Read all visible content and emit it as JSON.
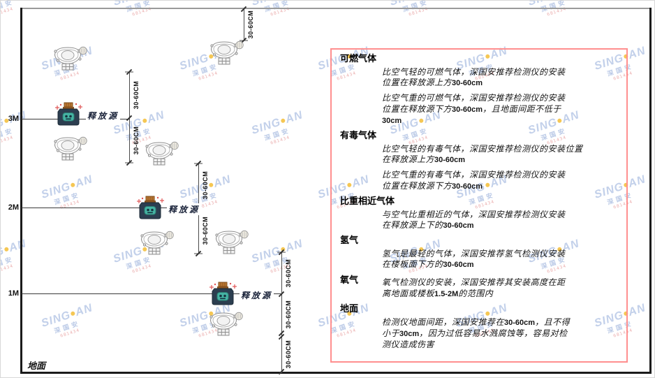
{
  "diagram": {
    "ground_label": "地面",
    "dim_label": "30-60CM",
    "release_source_label": "释放源",
    "height_markers": [
      {
        "label": "3M"
      },
      {
        "label": "2M"
      },
      {
        "label": "1M"
      }
    ]
  },
  "panel": {
    "sections": [
      {
        "title": "可燃气体",
        "paras": [
          [
            "比空气轻的可燃气体，深国安推荐检测仪的安装",
            "位置在释放源上方30-60cm"
          ],
          [
            "比空气重的可燃气体，深国安推荐检测仪的安装",
            "位置在释放源下方30-60cm，且地面间距不低于",
            "30cm"
          ]
        ]
      },
      {
        "title": "有毒气体",
        "paras": [
          [
            "比空气轻的有毒气体，深国安推荐检测仪的安装位置",
            "在释放源上方30-60cm"
          ],
          [
            "比空气重的有毒气体，深国安推荐检测仪的安装",
            "位置在释放源下方30-60cm"
          ]
        ]
      },
      {
        "title": "比重相近气体",
        "paras": [
          [
            "与空气比重相近的气体，深国安推荐检测仪安装",
            "在释放源上下的30-60cm"
          ]
        ]
      },
      {
        "title": "氢气",
        "paras": [
          [
            "氢气是最轻的气体，深国安推荐氢气检测仪安装",
            "在楼板面下方的30-60cm"
          ]
        ]
      },
      {
        "title": "氧气",
        "inline": true,
        "paras": [
          [
            "氧气检测仪的安装，深国安推荐其安装高度在距",
            "离地面或楼板1.5-2M的范围内"
          ]
        ]
      },
      {
        "title": "地面",
        "paras": [
          [
            "检测仪地面间距，深国安推荐在30-60cm，且不得",
            "小于30cm，因为过低容易水溅腐蚀等，容易对检",
            "测仪造成伤害"
          ]
        ]
      }
    ]
  },
  "watermark": {
    "brand_left": "SING",
    "brand_right": "AN",
    "sub": "深国安",
    "code": "681434"
  }
}
